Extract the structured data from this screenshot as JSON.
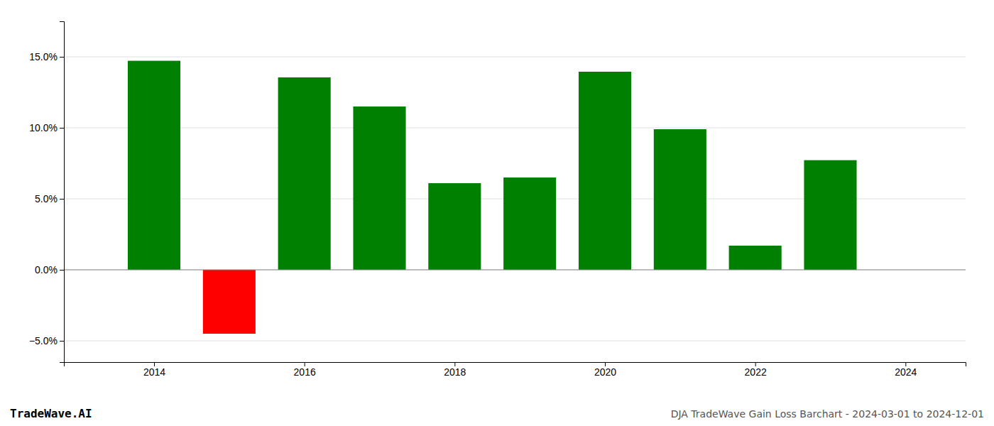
{
  "chart_data": {
    "type": "bar",
    "x": [
      2014,
      2015,
      2016,
      2017,
      2018,
      2019,
      2020,
      2021,
      2022,
      2023
    ],
    "values": [
      14.72,
      -4.5,
      13.55,
      11.5,
      6.1,
      6.5,
      13.95,
      9.9,
      1.7,
      7.72
    ],
    "colors": [
      "#008000",
      "#ff0000",
      "#008000",
      "#008000",
      "#008000",
      "#008000",
      "#008000",
      "#008000",
      "#008000",
      "#008000"
    ],
    "xlim": [
      2012.8,
      2024.8
    ],
    "xticks": [
      2014,
      2016,
      2018,
      2020,
      2022,
      2024
    ],
    "ylim": [
      -6.5,
      17.5
    ],
    "yticks": [
      {
        "value": -5.0,
        "label": "−5.0%"
      },
      {
        "value": 0.0,
        "label": "0.0%"
      },
      {
        "value": 5.0,
        "label": "5.0%"
      },
      {
        "value": 10.0,
        "label": "10.0%"
      },
      {
        "value": 15.0,
        "label": "15.0%"
      }
    ],
    "grid": true,
    "annotations": [
      "TradeWave.AI",
      "DJA TradeWave Gain Loss Barchart - 2024-03-01 to 2024-12-01"
    ]
  }
}
